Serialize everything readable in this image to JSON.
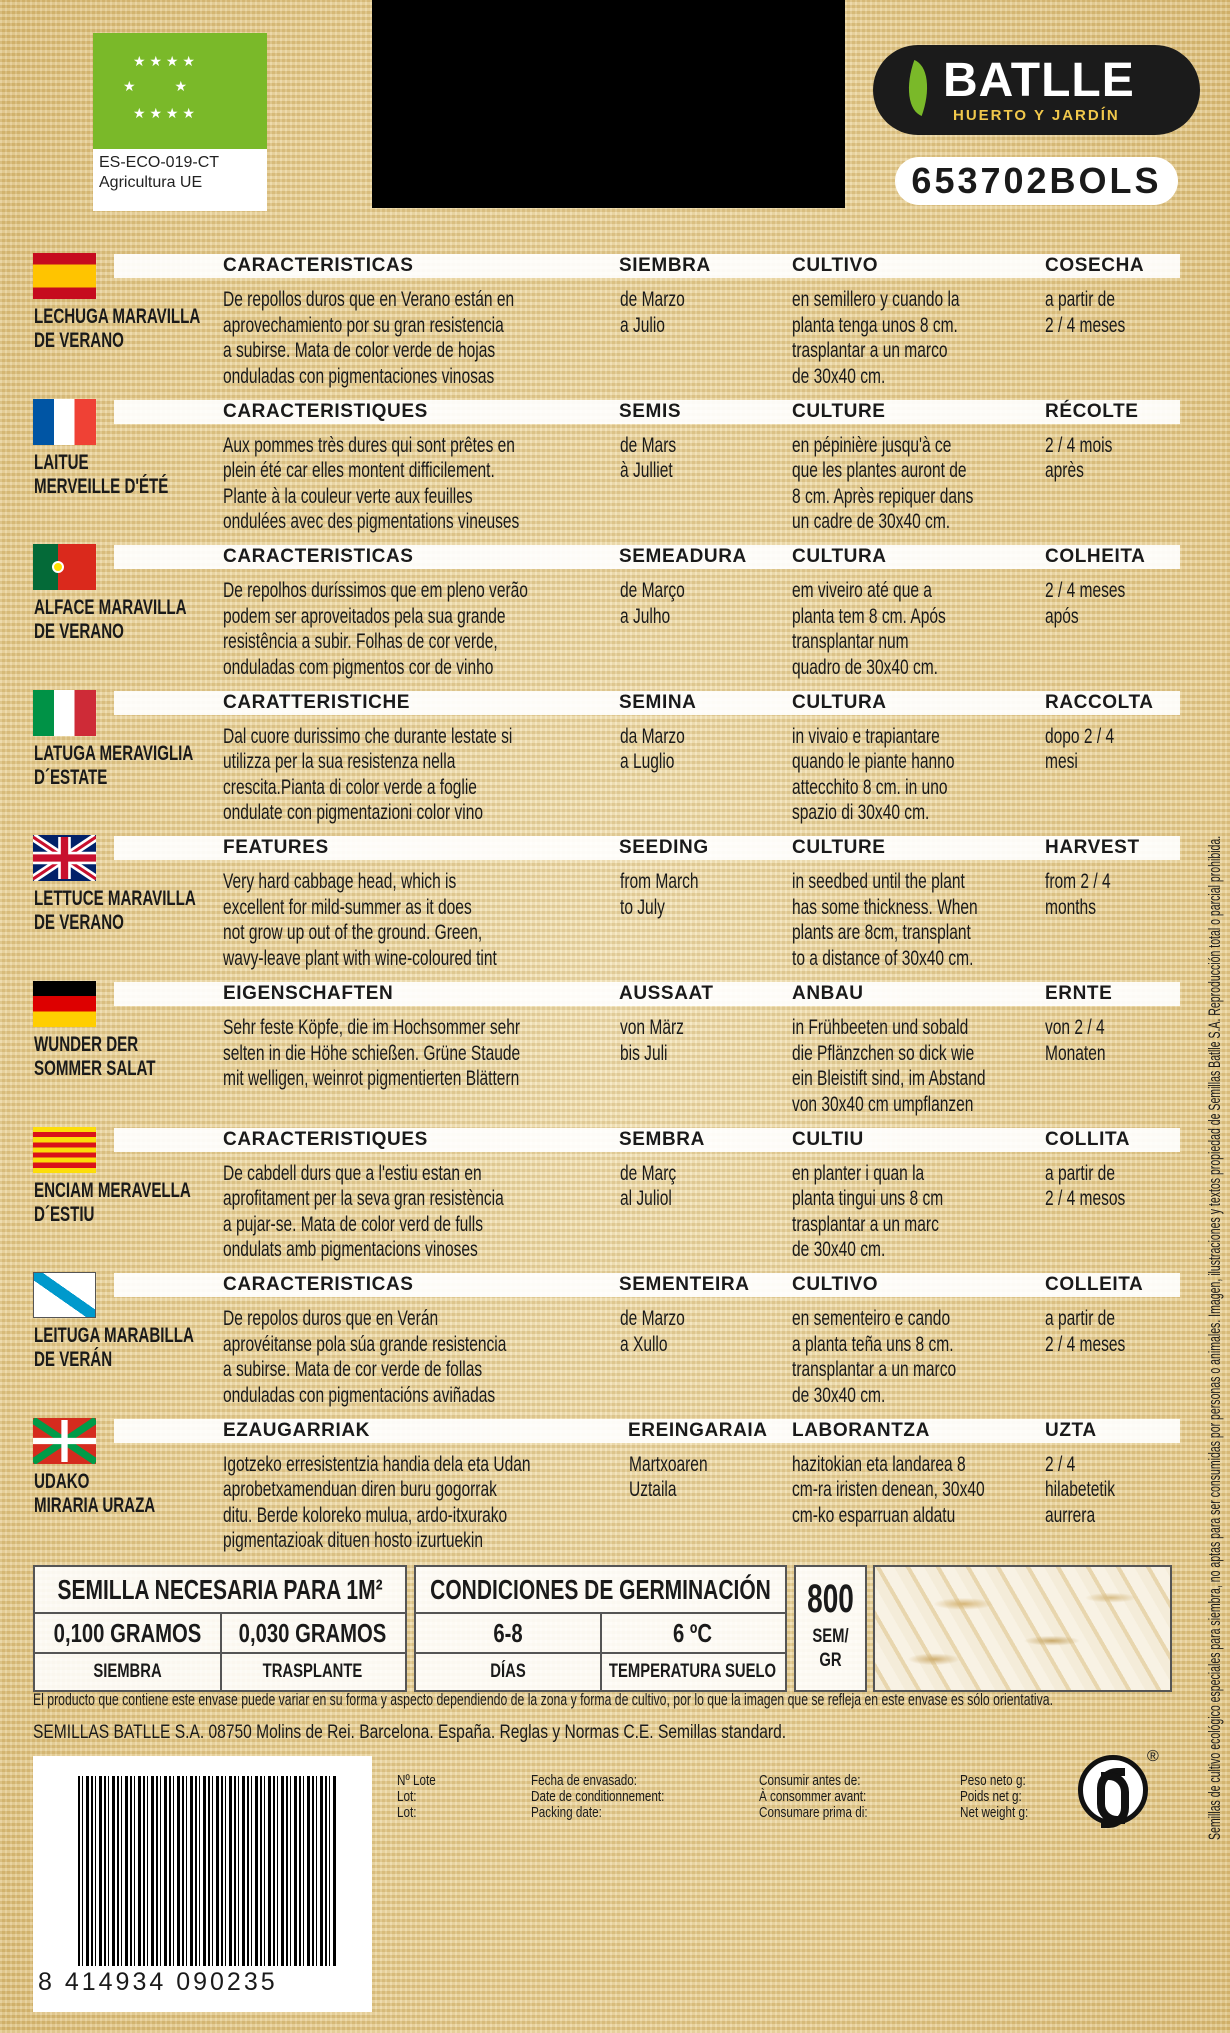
{
  "eu_logo": {
    "code": "ES-ECO-019-CT",
    "label": "Agricultura UE"
  },
  "brand": {
    "name": "BATLLE",
    "tagline": "HUERTO Y JARDÍN",
    "product_code": "653702BOLS",
    "accent": "#7ab929"
  },
  "rows": [
    {
      "flag": "es",
      "name": [
        "LECHUGA MARAVILLA",
        "DE VERANO"
      ],
      "h_desc": "CARACTERISTICAS",
      "h_sow": "SIEMBRA",
      "h_cult": "CULTIVO",
      "h_harv": "COSECHA",
      "desc": [
        "De repollos duros que en Verano están en",
        "aprovechamiento por su gran resistencia",
        "a subirse. Mata de color verde de hojas",
        "onduladas con pigmentaciones vinosas"
      ],
      "sow": [
        "de Marzo",
        "a Julio"
      ],
      "cult": [
        "en semillero y cuando la",
        "planta tenga unos 8 cm.",
        "trasplantar a un marco",
        "de 30x40 cm."
      ],
      "harv": [
        "a partir de",
        "2 / 4 meses"
      ]
    },
    {
      "flag": "fr",
      "name": [
        "LAITUE",
        "MERVEILLE D'ÉTÉ"
      ],
      "h_desc": "CARACTERISTIQUES",
      "h_sow": "SEMIS",
      "h_cult": "CULTURE",
      "h_harv": "RÉCOLTE",
      "desc": [
        "Aux pommes très dures qui sont prêtes en",
        "plein été car elles montent difficilement.",
        "Plante à la couleur verte aux feuilles",
        "ondulées avec des pigmentations vineuses"
      ],
      "sow": [
        "de Mars",
        "à Julliet"
      ],
      "cult": [
        "en pépinière jusqu'à ce",
        "que les plantes auront de",
        "8 cm. Après repiquer dans",
        "un cadre de 30x40 cm."
      ],
      "harv": [
        "2 / 4 mois",
        "après"
      ]
    },
    {
      "flag": "pt",
      "name": [
        "ALFACE MARAVILLA",
        "DE VERANO"
      ],
      "h_desc": "CARACTERISTICAS",
      "h_sow": "SEMEADURA",
      "h_cult": "CULTURA",
      "h_harv": "COLHEITA",
      "desc": [
        "De repolhos duríssimos que em pleno verão",
        "podem ser aproveitados pela sua grande",
        "resistência a subir. Folhas de cor verde,",
        "onduladas com pigmentos cor de vinho"
      ],
      "sow": [
        "de Março",
        "a Julho"
      ],
      "cult": [
        "em viveiro até que a",
        "planta tem 8 cm. Após",
        "transplantar num",
        "quadro de 30x40 cm."
      ],
      "harv": [
        "2 / 4 meses",
        "após"
      ]
    },
    {
      "flag": "it",
      "name": [
        "LATUGA MERAVIGLIA",
        "D´ESTATE"
      ],
      "h_desc": "CARATTERISTICHE",
      "h_sow": "SEMINA",
      "h_cult": "CULTURA",
      "h_harv": "RACCOLTA",
      "desc": [
        "Dal cuore durissimo che durante lestate si",
        "utilizza per la sua resistenza nella",
        "crescita.Pianta di color verde a foglie",
        "ondulate con pigmentazioni color vino"
      ],
      "sow": [
        "da Marzo",
        "a Luglio"
      ],
      "cult": [
        "in vivaio e trapiantare",
        "quando le piante hanno",
        "attecchito 8 cm. in uno",
        "spazio di 30x40 cm."
      ],
      "harv": [
        "dopo 2 / 4",
        "mesi"
      ]
    },
    {
      "flag": "uk",
      "name": [
        "LETTUCE MARAVILLA",
        "DE VERANO"
      ],
      "h_desc": "FEATURES",
      "h_sow": "SEEDING",
      "h_cult": "CULTURE",
      "h_harv": "HARVEST",
      "desc": [
        "Very hard cabbage head, which is",
        "excellent for mild-summer as it does",
        "not grow up out of the ground. Green,",
        "wavy-leave plant with wine-coloured tint"
      ],
      "sow": [
        "from March",
        "to July"
      ],
      "cult": [
        "in seedbed until the plant",
        "has some thickness. When",
        "plants are 8cm, transplant",
        "to a distance of 30x40 cm."
      ],
      "harv": [
        "from 2 / 4",
        "months"
      ]
    },
    {
      "flag": "de",
      "name": [
        "WUNDER DER",
        "SOMMER SALAT"
      ],
      "h_desc": "EIGENSCHAFTEN",
      "h_sow": "AUSSAAT",
      "h_cult": "ANBAU",
      "h_harv": "ERNTE",
      "desc": [
        "Sehr feste Köpfe, die im Hochsommer sehr",
        "selten in die Höhe schießen. Grüne Staude",
        "mit welligen, weinrot pigmentierten Blättern"
      ],
      "sow": [
        "von März",
        "bis Juli"
      ],
      "cult": [
        "in Frühbeeten und sobald",
        "die Pflänzchen so dick wie",
        "ein Bleistift sind, im Abstand",
        "von 30x40 cm umpflanzen"
      ],
      "harv": [
        "von 2 / 4",
        "Monaten"
      ]
    },
    {
      "flag": "ca",
      "name": [
        "ENCIAM MERAVELLA",
        "D´ESTIU"
      ],
      "h_desc": "CARACTERISTIQUES",
      "h_sow": "SEMBRA",
      "h_cult": "CULTIU",
      "h_harv": "COLLITA",
      "desc": [
        "De cabdell durs que a l'estiu estan en",
        "aprofitament per la seva gran resistència",
        "a pujar-se. Mata de color verd de fulls",
        "ondulats amb pigmentacions vinoses"
      ],
      "sow": [
        "de Març",
        "al Juliol"
      ],
      "cult": [
        "en planter i quan la",
        "planta tingui uns 8 cm",
        "trasplantar a un marc",
        "de 30x40 cm."
      ],
      "harv": [
        "a partir de",
        "2 / 4 mesos"
      ]
    },
    {
      "flag": "gl",
      "name": [
        "LEITUGA MARABILLA",
        "DE VERÁN"
      ],
      "h_desc": "CARACTERISTICAS",
      "h_sow": "SEMENTEIRA",
      "h_cult": "CULTIVO",
      "h_harv": "COLLEITA",
      "desc": [
        "De repolos duros que en Verán",
        "aprovéitanse pola súa grande resistencia",
        "a subirse. Mata de cor verde de follas",
        "onduladas con pigmentacións aviñadas"
      ],
      "sow": [
        "de Marzo",
        "a Xullo"
      ],
      "cult": [
        "en sementeiro e cando",
        "a planta teña uns 8 cm.",
        "transplantar a un marco",
        "de 30x40 cm."
      ],
      "harv": [
        "a partir de",
        "2 / 4 meses"
      ]
    },
    {
      "flag": "eu",
      "name": [
        "UDAKO",
        "MIRARIA URAZA"
      ],
      "h_desc": "EZAUGARRIAK",
      "h_sow": "EREINGARAIA",
      "h_cult": "LABORANTZA",
      "h_harv": "UZTA",
      "desc": [
        "Igotzeko erresistentzia handia dela eta Udan",
        "aprobetxamenduan diren buru gogorrak",
        "ditu. Berde koloreko mulua, ardo-itxurako",
        "pigmentazioak dituen hosto izurtuekin"
      ],
      "sow": [
        "Martxoaren",
        "Uztaila"
      ],
      "cult": [
        "hazitokian eta landarea 8",
        "cm-ra iristen denean, 30x40",
        "cm-ko esparruan aldatu"
      ],
      "harv": [
        "2 / 4",
        "hilabetetik",
        "aurrera"
      ]
    }
  ],
  "seed_table": {
    "needed_title": "SEMILLA NECESARIA PARA 1M²",
    "sowing_amount": "0,100 GRAMOS",
    "sowing_label": "SIEMBRA",
    "transplant_amount": "0,030 GRAMOS",
    "transplant_label": "TRASPLANTE",
    "germ_title": "CONDICIONES DE GERMINACIÓN",
    "days": "6-8",
    "days_label": "DÍAS",
    "temp": "6 ºC",
    "temp_label": "TEMPERATURA SUELO",
    "seeds_per_gram": "800",
    "seeds_unit_1": "SEM/",
    "seeds_unit_2": "GR"
  },
  "disclaimer": "El producto que contiene este envase puede variar en su forma y aspecto dependiendo de la zona y forma de cultivo, por lo que la imagen que se refleja en este envase es sólo orientativa.",
  "company": "SEMILLAS BATLLE S.A. 08750 Molins de Rei. Barcelona. España. Reglas y Normas C.E. Semillas standard.",
  "barcode": "8 414934 090235",
  "lot_info": [
    [
      "Nº Lote",
      "Lot:",
      "Lot:"
    ],
    [
      "Fecha de envasado:",
      "Date de conditionnement:",
      "Packing date:"
    ],
    [
      "Consumir antes de:",
      "À consommer avant:",
      "Consumare prima di:"
    ],
    [
      "Peso neto g:",
      "Poids net g:",
      "Net weight g:"
    ]
  ],
  "registered_mark": "®",
  "vertical_notice": "Semillas de cultivo ecológico especiales para siembra, no aptas para ser consumidas por personas o animales. Imagen, ilustraciones y textos propiedad de Semillas Batlle S.A. Reproducción total o parcial prohibida."
}
